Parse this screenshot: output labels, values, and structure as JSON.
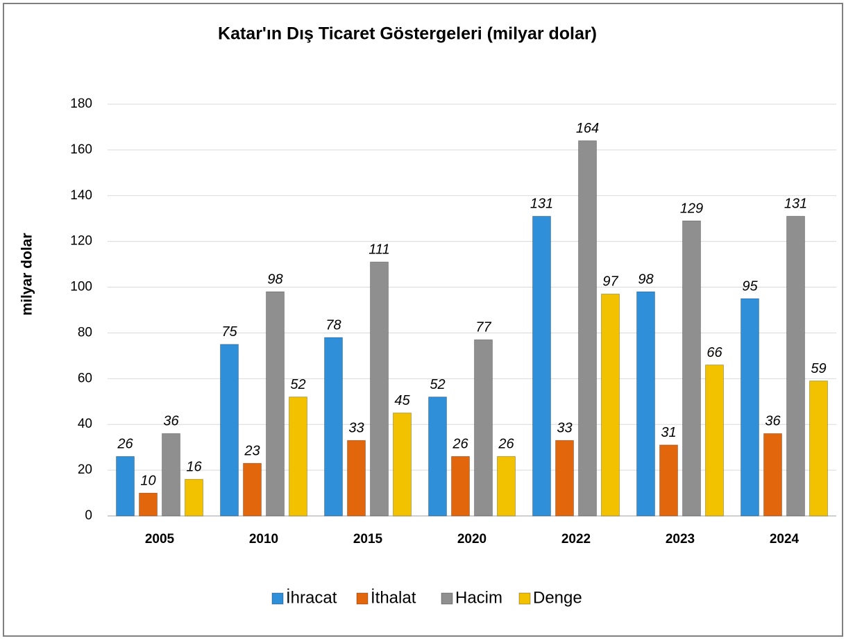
{
  "chart_data": {
    "type": "bar",
    "title": "Katar'ın Dış Ticaret Göstergeleri (milyar dolar)",
    "y_label": "milyar dolar",
    "categories": [
      "2005",
      "2010",
      "2015",
      "2020",
      "2022",
      "2023",
      "2024"
    ],
    "series": [
      {
        "name": "İhracat",
        "color": "#2f8fd8",
        "values": [
          26,
          75,
          78,
          52,
          131,
          98,
          95
        ]
      },
      {
        "name": "İthalat",
        "color": "#e2670c",
        "values": [
          10,
          23,
          33,
          26,
          33,
          31,
          36
        ]
      },
      {
        "name": "Hacim",
        "color": "#8f8f8f",
        "values": [
          36,
          98,
          111,
          77,
          164,
          129,
          131
        ]
      },
      {
        "name": "Denge",
        "color": "#f2c200",
        "values": [
          16,
          52,
          45,
          26,
          97,
          66,
          59
        ]
      }
    ],
    "ylim": [
      0,
      180
    ],
    "yticks": [
      0,
      20,
      40,
      60,
      80,
      100,
      120,
      140,
      160,
      180
    ],
    "grid": true,
    "legend": "bottom"
  }
}
